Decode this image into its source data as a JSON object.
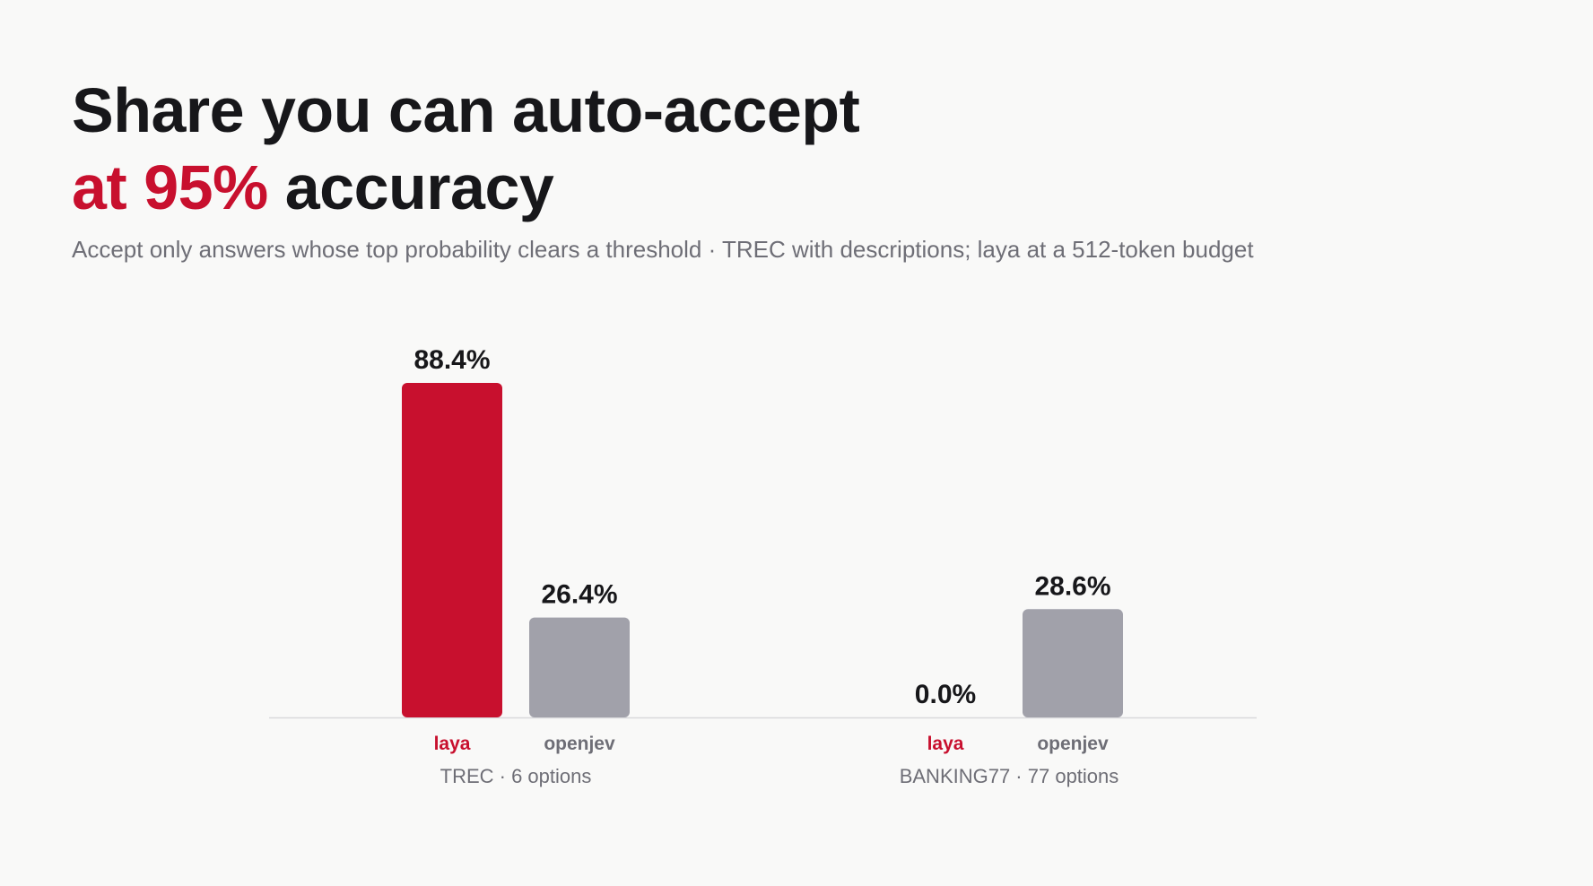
{
  "headline": {
    "line1": "Share you can auto-accept",
    "line2_accent": "at 95%",
    "line2_rest": " accuracy"
  },
  "subtitle": "Accept only answers whose top probability clears a threshold · TREC with descriptions; laya at a 512-token budget",
  "colors": {
    "laya": "#c8102e",
    "openjev": "#a1a1aa",
    "laya_label": "#c8102e",
    "openjev_label": "#6e6e76",
    "baseline": "#d9d9dc",
    "text": "#17171a"
  },
  "chart_data": {
    "type": "bar",
    "title": "Share you can auto-accept at 95% accuracy",
    "categories": [
      "TREC · 6 options",
      "BANKING77 · 77 options"
    ],
    "series": [
      {
        "name": "laya",
        "values": [
          88.4,
          0.0
        ],
        "value_labels": [
          "88.4%",
          "0.0%"
        ]
      },
      {
        "name": "openjev",
        "values": [
          26.4,
          28.6
        ],
        "value_labels": [
          "26.4%",
          "28.6%"
        ]
      }
    ],
    "unit": "%",
    "ylim": [
      0,
      100
    ],
    "grid": false,
    "legend": "none"
  }
}
